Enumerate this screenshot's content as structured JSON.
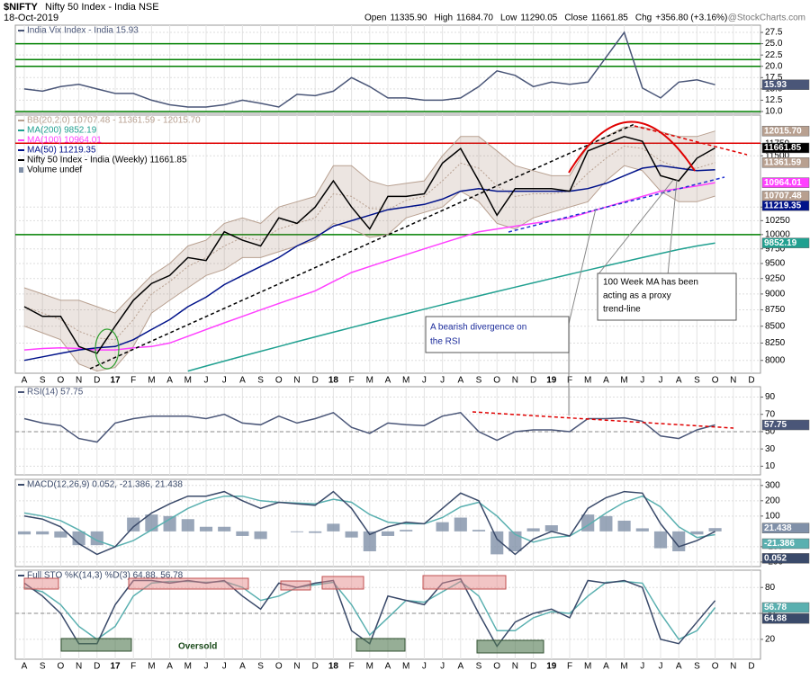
{
  "header": {
    "symbol": "$NIFTY",
    "name": "Nifty 50 Index - India NSE",
    "date": "18-Oct-2019",
    "ohlc": [
      [
        "Open",
        "11335.90"
      ],
      [
        "High",
        "11684.70"
      ],
      [
        "Low",
        "11290.05"
      ],
      [
        "Close",
        "11661.85"
      ],
      [
        "Chg",
        "+356.80 (+3.16%)"
      ]
    ],
    "credit": "@StockCharts.com"
  },
  "annotations": {
    "ma_note": [
      "100 Week MA has been",
      "acting as a proxy",
      "trend-line"
    ],
    "rsi_note": [
      "A bearish divergence on",
      "the RSI"
    ],
    "oversold": "Oversold"
  },
  "chart_data": [
    {
      "type": "line",
      "ylim": [
        9.6,
        29.1
      ],
      "yticks": [
        {
          "value": 10,
          "label": "10.0"
        },
        12.5,
        {
          "value": 15,
          "label": "15.0"
        },
        17.5,
        {
          "value": 20,
          "label": "20.0"
        },
        22.5,
        {
          "value": 25,
          "label": "25.0"
        },
        27.5
      ],
      "hlines": [
        {
          "value": 10,
          "color": "#008000"
        },
        {
          "value": 20,
          "color": "#008000"
        },
        {
          "value": 21.5,
          "color": "#008000"
        },
        {
          "value": 25,
          "color": "#008000"
        }
      ],
      "grid": true,
      "series": [
        {
          "name": "India Vix Index - India 15.93",
          "color": "#4a5678",
          "tag": true,
          "values": [
            15,
            14.5,
            15.5,
            16,
            15,
            14,
            14,
            12.5,
            11.5,
            11,
            11,
            11.5,
            12.5,
            11.8,
            11,
            13.8,
            13.5,
            14.5,
            17.5,
            15.5,
            13,
            13,
            12.5,
            12.5,
            13,
            15.5,
            19,
            18,
            15.5,
            16.5,
            16,
            16.5,
            22,
            27.5,
            15.2,
            13,
            16.5,
            17,
            15.93,
            null,
            null
          ]
        }
      ]
    },
    {
      "type": "line",
      "log_scale": true,
      "ylim": [
        7820,
        12360
      ],
      "grid": true,
      "categories": [
        "A",
        "S",
        "O",
        "N",
        "D",
        "17",
        "F",
        "M",
        "A",
        "M",
        "J",
        "J",
        "A",
        "S",
        "O",
        "N",
        "D",
        "18",
        "F",
        "M",
        "A",
        "M",
        "J",
        "J",
        "A",
        "S",
        "O",
        "N",
        "D",
        "19",
        "F",
        "M",
        "A",
        "M",
        "J",
        "J",
        "A",
        "S",
        "O",
        "N",
        "D"
      ],
      "yticks": [
        8000,
        8250,
        8500,
        8750,
        9000,
        9250,
        9500,
        9750,
        10000,
        10250,
        10500,
        11500,
        11750
      ],
      "hlines": [
        {
          "value": 10000,
          "color": "#008000"
        },
        {
          "value": 11760,
          "color": "#e00000"
        }
      ],
      "volume_label": "Volume undef",
      "series": [
        {
          "name": "BB(20,2.0) 10707.48 - 11361.59 - 12015.70",
          "color": "#b8a090",
          "tag": true,
          "band": "lower",
          "values": [
            9100,
            9000,
            8900,
            8900,
            8800,
            8700,
            9000,
            9300,
            9500,
            9800,
            9900,
            10200,
            10300,
            10200,
            10500,
            10600,
            10700,
            11300,
            11300,
            11000,
            10900,
            10950,
            11000,
            11500,
            11900,
            11900,
            11600,
            11300,
            11200,
            11100,
            11100,
            11700,
            11900,
            12100,
            12100,
            12000,
            11900,
            11900,
            12015.7,
            null,
            null
          ],
          "value_labels": [
            null,
            null,
            null,
            null,
            null,
            null,
            null,
            null,
            null,
            null,
            null,
            null,
            null,
            null,
            null,
            null,
            null,
            null,
            null,
            null,
            null,
            null,
            null,
            null,
            null,
            null,
            null,
            null,
            null,
            null,
            null,
            null,
            null,
            null,
            null,
            null,
            null,
            null,
            "12015.70",
            null,
            null
          ]
        },
        {
          "color": "#b8a090",
          "tag": true,
          "dash": true,
          "values": [
            8800,
            8700,
            8600,
            8425,
            8325,
            8300,
            8600,
            9000,
            9200,
            9450,
            9600,
            9800,
            9950,
            9900,
            10100,
            10200,
            10300,
            10750,
            10700,
            10475,
            10450,
            10625,
            10700,
            11000,
            11350,
            11250,
            10900,
            10700,
            10750,
            10750,
            10800,
            11150,
            11450,
            11700,
            11650,
            11400,
            11250,
            11250,
            11361.59,
            null,
            null
          ]
        },
        {
          "color": "#b8a090",
          "tag": true,
          "values": [
            8500,
            8400,
            8300,
            7950,
            7850,
            7900,
            8200,
            8700,
            8900,
            9100,
            9300,
            9400,
            9600,
            9600,
            9700,
            9800,
            9900,
            10200,
            10100,
            9950,
            10000,
            10300,
            10400,
            10500,
            10800,
            10600,
            10200,
            10100,
            10300,
            10400,
            10500,
            10600,
            11000,
            11300,
            11200,
            10800,
            10600,
            10600,
            10707.48,
            null,
            null
          ]
        },
        {
          "name": "MA(200) 9852.19",
          "color": "#20a090",
          "tag": true,
          "values": [
            null,
            null,
            null,
            null,
            null,
            null,
            null,
            null,
            null,
            7850,
            7920,
            7990,
            8060,
            8130,
            8200,
            8270,
            8340,
            8410,
            8480,
            8550,
            8620,
            8690,
            8760,
            8830,
            8900,
            8970,
            9040,
            9110,
            9180,
            9250,
            9320,
            9390,
            9460,
            9530,
            9600,
            9670,
            9740,
            9800,
            9852.19,
            null,
            null
          ]
        },
        {
          "name": "MA(100) 10964.01",
          "color": "#ff40ff",
          "tag": true,
          "values": [
            8150,
            8170,
            8180,
            8170,
            8150,
            8150,
            8180,
            8200,
            8250,
            8350,
            8450,
            8550,
            8650,
            8750,
            8850,
            8950,
            9050,
            9200,
            9350,
            9450,
            9550,
            9650,
            9750,
            9850,
            9950,
            10050,
            10100,
            10150,
            10200,
            10250,
            10300,
            10400,
            10500,
            10600,
            10700,
            10800,
            10850,
            10900,
            10964.01,
            null,
            null
          ]
        },
        {
          "name": "MA(50) 11219.35",
          "color": "#00128a",
          "tag": true,
          "values": [
            8000,
            8050,
            8100,
            8150,
            8180,
            8200,
            8300,
            8450,
            8600,
            8800,
            8950,
            9150,
            9300,
            9450,
            9600,
            9800,
            9950,
            10150,
            10250,
            10350,
            10450,
            10500,
            10550,
            10650,
            10800,
            10850,
            10800,
            10800,
            10800,
            10800,
            10800,
            10850,
            10950,
            11100,
            11250,
            11300,
            11250,
            11200,
            11219.35,
            null,
            null
          ]
        },
        {
          "name": "Nifty 50 Index - India (Weekly) 11661.85",
          "color": "#000000",
          "tag": true,
          "values": [
            8800,
            8650,
            8650,
            8200,
            8100,
            8500,
            8900,
            9170,
            9300,
            9600,
            9550,
            10050,
            9900,
            9800,
            10300,
            10200,
            10500,
            11000,
            10500,
            10100,
            10700,
            10700,
            10750,
            11350,
            11650,
            11000,
            10350,
            10850,
            10850,
            10850,
            10800,
            11600,
            11750,
            11900,
            11800,
            11100,
            11000,
            11450,
            11661.85,
            null,
            null
          ]
        }
      ]
    },
    {
      "type": "line",
      "ylim": [
        0,
        102
      ],
      "grid": true,
      "yticks": [
        10,
        30,
        50,
        70,
        90
      ],
      "hlines": [
        {
          "value": 50,
          "color": "#888888",
          "dash": true
        }
      ],
      "series": [
        {
          "name": "RSI(14) 57.75",
          "color": "#4a5678",
          "tag": true,
          "values": [
            65,
            60,
            57,
            42,
            38,
            60,
            65,
            68,
            68,
            68,
            65,
            70,
            60,
            58,
            68,
            60,
            65,
            72,
            55,
            48,
            60,
            58,
            57,
            68,
            72,
            50,
            40,
            50,
            52,
            52,
            50,
            65,
            65,
            66,
            62,
            45,
            42,
            52,
            57.75,
            null,
            null
          ]
        }
      ]
    },
    {
      "type": "line",
      "ylim": [
        -230,
        340
      ],
      "grid": true,
      "yticks": [
        -200,
        -100,
        100,
        200,
        300
      ],
      "series": [
        {
          "color": "#8090a8",
          "style": "bar",
          "tag": true,
          "values": [
            -20,
            -20,
            -40,
            -90,
            -90,
            0,
            90,
            110,
            100,
            80,
            30,
            30,
            -30,
            -50,
            0,
            -5,
            -10,
            50,
            -40,
            -130,
            -30,
            10,
            0,
            60,
            90,
            10,
            -150,
            -130,
            20,
            40,
            0,
            110,
            100,
            70,
            20,
            -110,
            -130,
            -20,
            21.438,
            null,
            null
          ]
        },
        {
          "color": "#5ab0b0",
          "tag": true,
          "values": [
            120,
            100,
            70,
            10,
            -60,
            -100,
            -60,
            10,
            80,
            150,
            200,
            230,
            230,
            200,
            190,
            185,
            180,
            210,
            190,
            110,
            60,
            50,
            50,
            90,
            160,
            190,
            100,
            -20,
            -70,
            -40,
            -30,
            40,
            120,
            190,
            230,
            160,
            30,
            -40,
            -21.386,
            null,
            null
          ]
        },
        {
          "name": "MACD(12,26,9) 0.052, -21.386, 21.438",
          "color": "#3a4a6a",
          "tag": true,
          "values": [
            100,
            80,
            30,
            -80,
            -150,
            -100,
            30,
            120,
            180,
            230,
            230,
            260,
            200,
            150,
            190,
            180,
            170,
            260,
            150,
            -20,
            30,
            60,
            50,
            150,
            250,
            200,
            -50,
            -150,
            -50,
            0,
            -30,
            150,
            220,
            260,
            250,
            50,
            -100,
            -60,
            0.052,
            null,
            null
          ]
        }
      ]
    },
    {
      "type": "line",
      "ylim": [
        -3,
        100
      ],
      "grid": true,
      "yticks": [
        20,
        50,
        80
      ],
      "categories": [
        "A",
        "S",
        "O",
        "N",
        "D",
        "17",
        "F",
        "M",
        "A",
        "M",
        "J",
        "J",
        "A",
        "S",
        "O",
        "N",
        "D",
        "18",
        "F",
        "M",
        "A",
        "M",
        "J",
        "J",
        "A",
        "S",
        "O",
        "N",
        "D",
        "19",
        "F",
        "M",
        "A",
        "M",
        "J",
        "J",
        "A",
        "S",
        "O",
        "N",
        "D"
      ],
      "hlines": [
        {
          "value": 50,
          "color": "#888888",
          "dash": true
        }
      ],
      "series": [
        {
          "color": "#5ab0b0",
          "tag": true,
          "values": [
            80,
            75,
            60,
            35,
            20,
            35,
            70,
            85,
            87,
            87,
            86,
            87,
            80,
            65,
            70,
            80,
            83,
            86,
            60,
            25,
            45,
            65,
            63,
            75,
            87,
            70,
            30,
            30,
            45,
            52,
            50,
            70,
            86,
            87,
            85,
            50,
            20,
            30,
            56.78,
            null,
            null
          ]
        },
        {
          "name": "Full STO %K(14,3) %D(3) 64.88, 56.78",
          "color": "#3a4a6a",
          "tag": true,
          "values": [
            85,
            70,
            50,
            15,
            15,
            60,
            88,
            88,
            85,
            88,
            85,
            88,
            70,
            55,
            85,
            80,
            85,
            88,
            30,
            15,
            70,
            65,
            60,
            85,
            90,
            50,
            12,
            40,
            50,
            55,
            45,
            88,
            85,
            88,
            80,
            20,
            15,
            40,
            64.88,
            null,
            null
          ]
        }
      ]
    }
  ]
}
